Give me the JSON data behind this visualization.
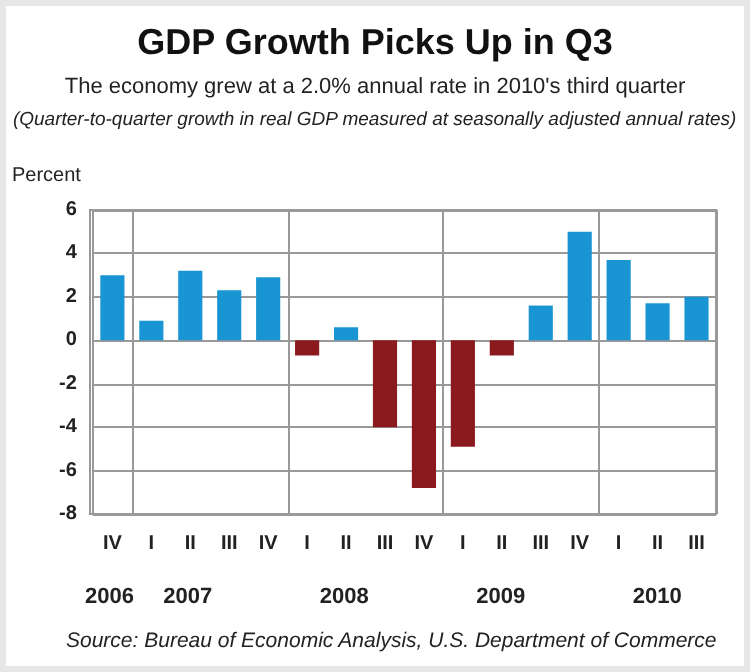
{
  "chart_data": {
    "type": "bar",
    "title": "GDP Growth Picks Up in Q3",
    "subtitle": "The economy grew at a 2.0% annual rate in 2010's third quarter",
    "annotations": [
      "(Quarter-to-quarter growth in real GDP measured at seasonally adjusted annual rates)",
      "2006",
      "2007",
      "2008",
      "2009",
      "2010",
      "Source: Bureau of Economic Analysis, U.S. Department of Commerce"
    ],
    "ylabel": "Percent",
    "categories": [
      "IV",
      "I",
      "II",
      "III",
      "IV",
      "I",
      "II",
      "III",
      "IV",
      "I",
      "II",
      "III",
      "IV",
      "I",
      "II",
      "III"
    ],
    "values": [
      3.0,
      0.9,
      3.2,
      2.3,
      2.9,
      -0.7,
      0.6,
      -4.0,
      -6.8,
      -4.9,
      -0.7,
      1.6,
      5.0,
      3.7,
      1.7,
      2.0
    ],
    "colors": [
      "#1a95d3",
      "#1a95d3",
      "#1a95d3",
      "#1a95d3",
      "#1a95d3",
      "#8b1a1e",
      "#1a95d3",
      "#8b1a1e",
      "#8b1a1e",
      "#8b1a1e",
      "#8b1a1e",
      "#1a95d3",
      "#1a95d3",
      "#1a95d3",
      "#1a95d3",
      "#1a95d3"
    ],
    "ylim": [
      -8,
      6
    ],
    "yticks": [
      -8,
      -6,
      -4,
      -2,
      0,
      2,
      4,
      6
    ],
    "grid": true
  }
}
